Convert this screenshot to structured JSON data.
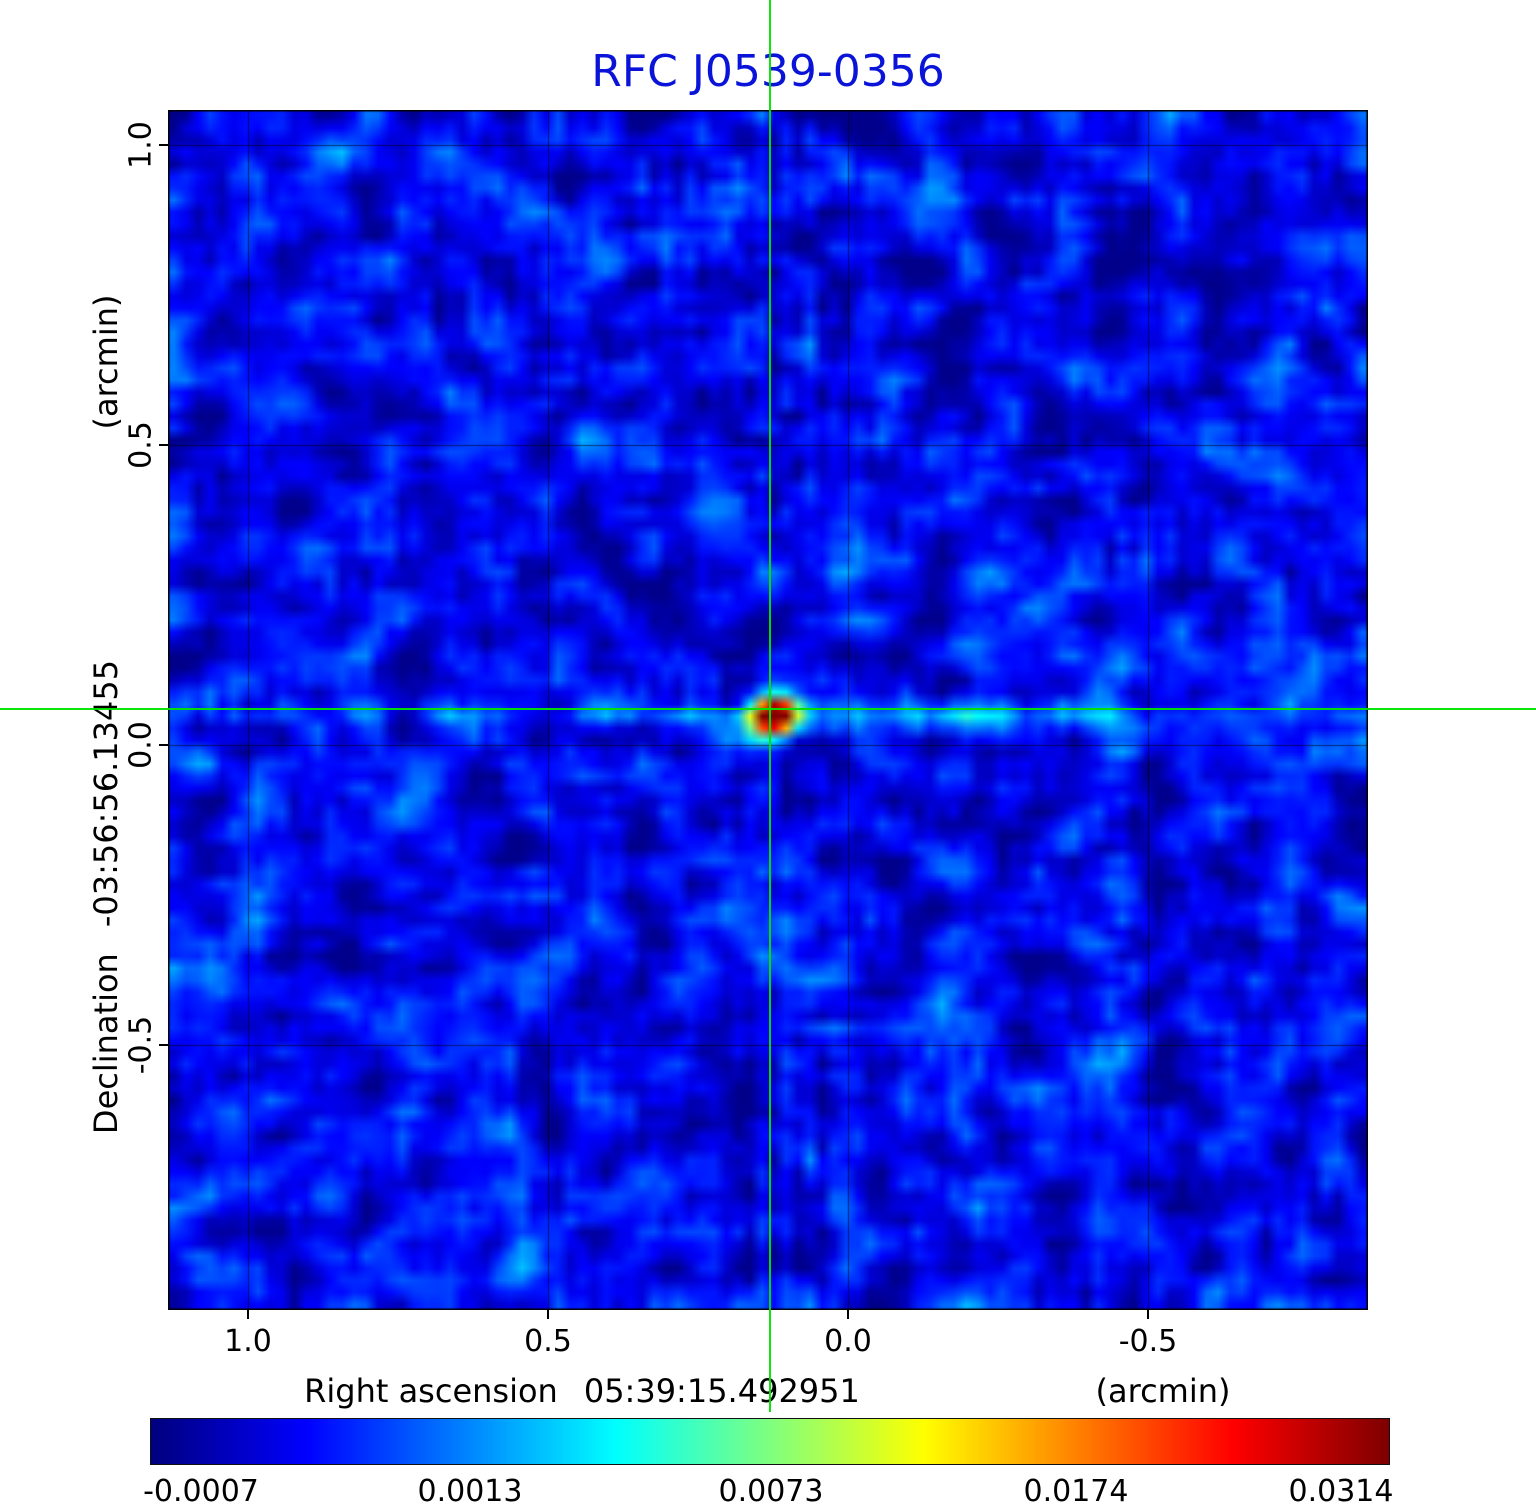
{
  "title": {
    "text": "RFC J0539-0356",
    "color": "#0a14d8"
  },
  "axes": {
    "x_label": "Right ascension",
    "x_value": "05:39:15.492951",
    "x_unit": "(arcmin)",
    "y_label": "Declination",
    "y_value": "-03:56:56.13455",
    "y_unit": "(arcmin)",
    "x_ticks": [
      "1.0",
      "0.5",
      "0.0",
      "-0.5"
    ],
    "y_ticks": [
      "1.0",
      "0.5",
      "0.0",
      "-0.5"
    ]
  },
  "colorbar": {
    "ticks": [
      "-0.0007",
      "0.0013",
      "0.0073",
      "0.0174",
      "0.0314"
    ],
    "colormap": "jet"
  },
  "crosshair": {
    "color": "#00e400"
  },
  "chart_data": {
    "type": "heatmap",
    "title": "RFC J0539-0356",
    "xlabel": "Right ascension 05:39:15.492951 (arcmin)",
    "ylabel": "Declination -03:56:56.13455 (arcmin)",
    "x_ticks_arcmin": [
      1.0,
      0.5,
      0.0,
      -0.5
    ],
    "y_ticks_arcmin": [
      1.0,
      0.5,
      0.0,
      -0.5
    ],
    "x_range_arcmin": [
      1.133,
      -0.867
    ],
    "y_range_arcmin": [
      1.058,
      -0.942
    ],
    "grid": true,
    "colormap": "jet",
    "colorbar_ticks": [
      -0.0007,
      0.0013,
      0.0073,
      0.0174,
      0.0314
    ],
    "source": {
      "peak_ra_offset_arcmin": 0.13,
      "peak_dec_offset_arcmin": 0.06,
      "peak_value": 0.0314
    },
    "background_level_range": [
      -0.0007,
      0.003
    ]
  }
}
